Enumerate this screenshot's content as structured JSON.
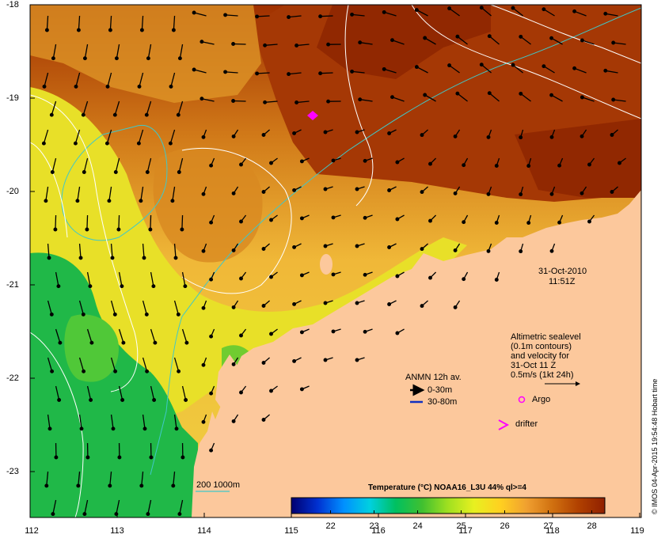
{
  "map": {
    "title": "Temperature (°C) NOAA16_L3U 44% ql>=4",
    "date": "31-Oct-2010",
    "time": "11:51Z",
    "lon_ticks": [
      "112",
      "113",
      "114",
      "115",
      "116",
      "117",
      "118",
      "119"
    ],
    "lat_ticks": [
      "-18",
      "-19",
      "-20",
      "-21",
      "-22",
      "-23"
    ],
    "colorbar_ticks": [
      "22",
      "23",
      "24",
      "25",
      "26",
      "27",
      "28"
    ],
    "colorbar_range": [
      21.1,
      28.3
    ],
    "colorbar_stops": [
      "#000070",
      "#0030d0",
      "#0090ff",
      "#00d0e0",
      "#00c060",
      "#40c030",
      "#a0e020",
      "#e8f020",
      "#ffd020",
      "#f0a030",
      "#d07010",
      "#b04000",
      "#902000"
    ],
    "credit": "© IMOS 04-Apr-2015 19:54:48 Hobart time",
    "legend": {
      "altimetric_lines": [
        "Altimetric sealevel",
        "(0.1m contours)",
        "and velocity for",
        "31-Oct 11 Z",
        "0.5m/s (1kt 24h)"
      ],
      "anmn_title": "ANMN 12h av.",
      "anmn_0_30": "0-30m",
      "anmn_30_80": "30-80m",
      "argo": "Argo",
      "drifter": "drifter",
      "bathymetry": "200  1000m"
    },
    "colors": {
      "land": "#fcc89c",
      "anmn_shallow": "#000000",
      "anmn_deep": "#1030c0",
      "argo": "#ff00ff",
      "drifter": "#ff00ff",
      "bathymetry_line": "#40c8c8",
      "contour_line": "#ffffff"
    }
  }
}
